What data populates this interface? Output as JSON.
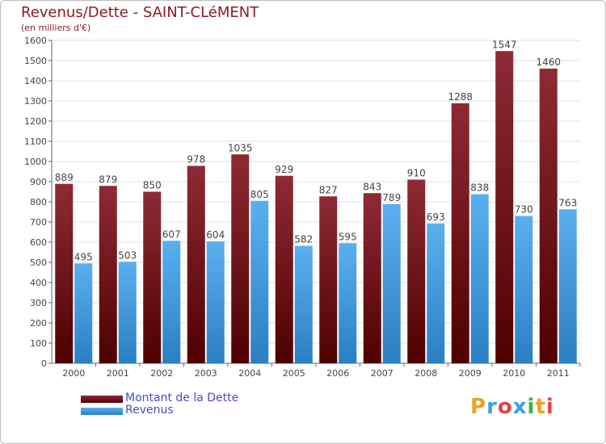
{
  "chart_data": {
    "type": "bar",
    "title": "Revenus/Dette - SAINT-CLéMENT",
    "subtitle": "(en milliers d'€)",
    "categories": [
      "2000",
      "2001",
      "2002",
      "2003",
      "2004",
      "2005",
      "2006",
      "2007",
      "2008",
      "2009",
      "2010",
      "2011"
    ],
    "series": [
      {
        "name": "Montant de la Dette",
        "color": "#7a1a1f",
        "values": [
          889,
          879,
          850,
          978,
          1035,
          929,
          827,
          843,
          910,
          1288,
          1547,
          1460
        ]
      },
      {
        "name": "Revenus",
        "color": "#4da6e8",
        "values": [
          495,
          503,
          607,
          604,
          805,
          582,
          595,
          789,
          693,
          838,
          730,
          763
        ]
      }
    ],
    "y_ticks": [
      "0",
      "100",
      "200",
      "300",
      "400",
      "500",
      "600",
      "700",
      "800",
      "900",
      "1000",
      "1100",
      "1200",
      "1300",
      "1400",
      "1500",
      "1600"
    ],
    "ylim": [
      0,
      1600
    ],
    "grid": true,
    "legend": "bottom-left"
  },
  "logo": {
    "letters": [
      "P",
      "r",
      "o",
      "x",
      "i",
      "t",
      "i"
    ],
    "colors": [
      "#f0a020",
      "#3aa0e0",
      "#e84040",
      "#3aa0e0",
      "#40b040",
      "#f0a020",
      "#e84040"
    ]
  }
}
